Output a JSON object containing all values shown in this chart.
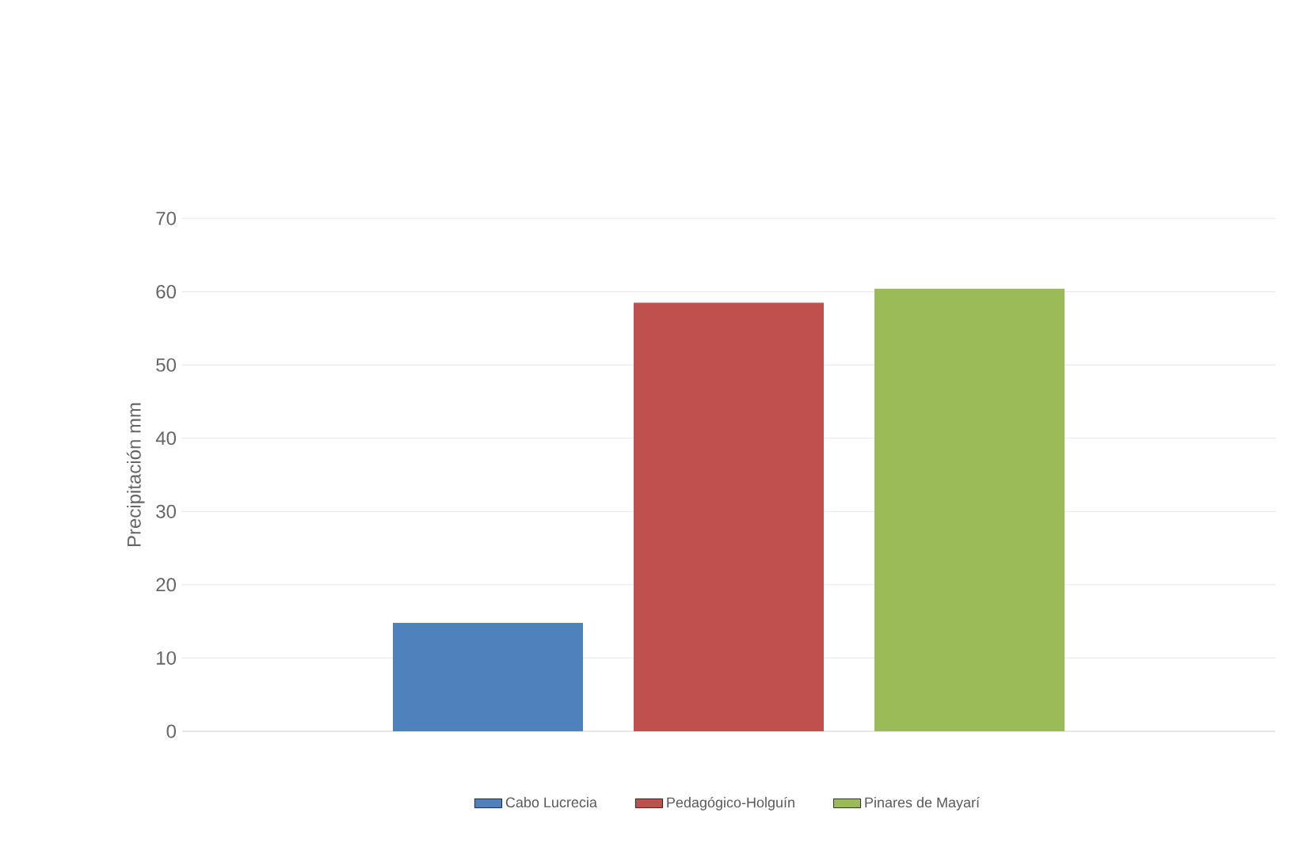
{
  "chart_data": {
    "type": "bar",
    "ylabel": "Precipitación mm",
    "categories": [
      null
    ],
    "series": [
      {
        "name": "Cabo Lucrecia",
        "color": "#4f81bd",
        "values": [
          14.8
        ]
      },
      {
        "name": "Pedagógico-Holguín",
        "color": "#c0504d",
        "values": [
          58.5
        ]
      },
      {
        "name": "Pinares de Mayarí",
        "color": "#9bbb59",
        "values": [
          60.4
        ]
      }
    ],
    "ylim": [
      0,
      70
    ],
    "yticks": [
      0,
      10,
      20,
      30,
      40,
      50,
      60,
      70
    ],
    "grid": "y",
    "legend": "bottom"
  }
}
